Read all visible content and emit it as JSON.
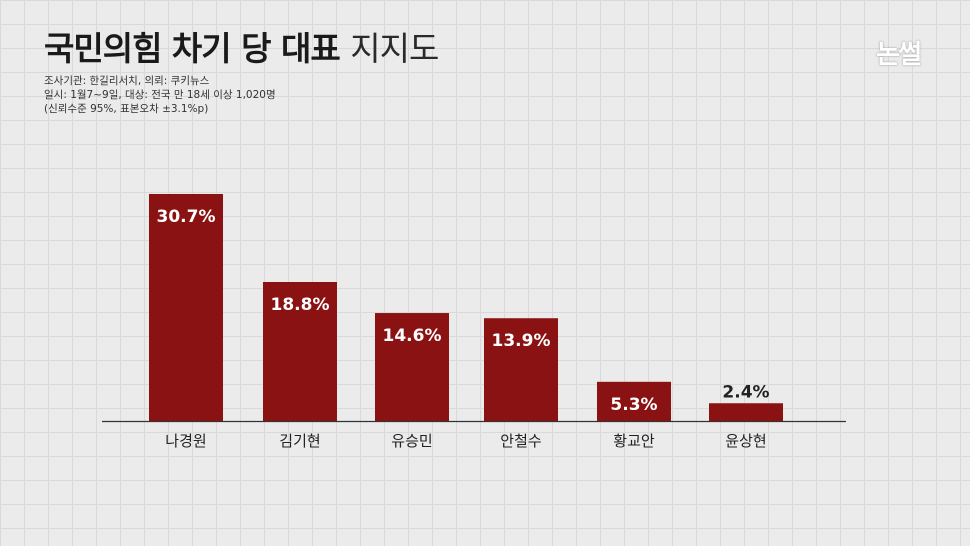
{
  "header": {
    "title_bold": "국민의힘 차기 당 대표",
    "title_light": "지지도",
    "meta_line1": "조사기관: 한길리서치,  의뢰:  쿠키뉴스",
    "meta_line2": "일시: 1월7~9일, 대상: 전국 만 18세 이상 1,020명",
    "meta_line3": "(신뢰수준 95%, 표본오차 ±3.1%p)",
    "logo_text": "논썰"
  },
  "chart_data": {
    "type": "bar",
    "categories": [
      "나경원",
      "김기현",
      "유승민",
      "안철수",
      "황교안",
      "윤상현"
    ],
    "values": [
      30.7,
      18.8,
      14.6,
      13.9,
      5.3,
      2.4
    ],
    "value_labels": [
      "30.7%",
      "18.8%",
      "14.6%",
      "13.9%",
      "5.3%",
      "2.4%"
    ],
    "ylim": [
      0,
      30.7
    ],
    "bar_color": "#8b1212",
    "grid": false,
    "legend": "none"
  }
}
